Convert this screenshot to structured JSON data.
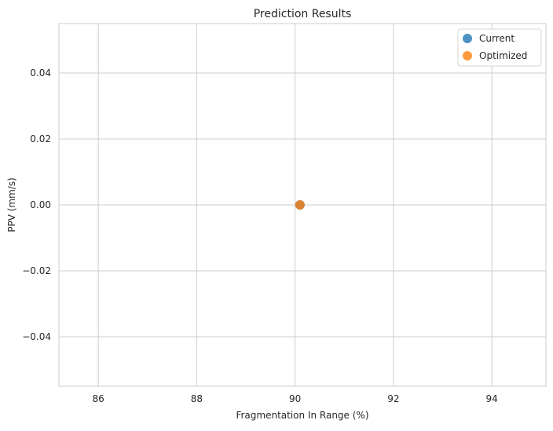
{
  "chart_data": {
    "type": "scatter",
    "title": "Prediction Results",
    "xlabel": "Fragmentation In Range (%)",
    "ylabel": "PPV (mm/s)",
    "xlim": [
      85.2,
      95.1
    ],
    "ylim": [
      -0.055,
      0.055
    ],
    "xticks": [
      86,
      88,
      90,
      92,
      94
    ],
    "xtick_labels": [
      "86",
      "88",
      "90",
      "92",
      "94"
    ],
    "yticks": [
      -0.04,
      -0.02,
      0.0,
      0.02,
      0.04
    ],
    "ytick_labels": [
      "−0.04",
      "−0.02",
      "0.00",
      "0.02",
      "0.04"
    ],
    "grid": true,
    "legend_position": "top-right",
    "series": [
      {
        "name": "Current",
        "color": "#1f77b4",
        "points": [
          {
            "x": 90.1,
            "y": 0.0
          }
        ]
      },
      {
        "name": "Optimized",
        "color": "#ff7f0e",
        "points": [
          {
            "x": 90.1,
            "y": 0.0
          }
        ]
      }
    ]
  }
}
